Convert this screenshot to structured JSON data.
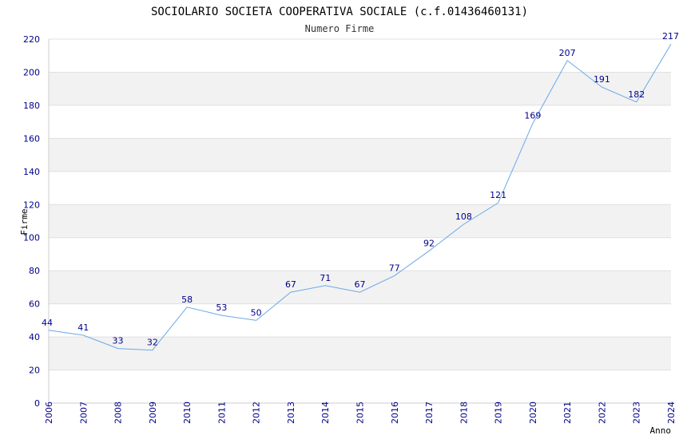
{
  "chart_data": {
    "type": "line",
    "title": "SOCIOLARIO SOCIETA COOPERATIVA SOCIALE (c.f.01436460131)",
    "subtitle": "Numero Firme",
    "xlabel": "Anno",
    "ylabel": "Firme",
    "ylim": [
      0,
      220
    ],
    "yticks": [
      0,
      20,
      40,
      60,
      80,
      100,
      120,
      140,
      160,
      180,
      200,
      220
    ],
    "grid": true,
    "x": [
      "2006",
      "2007",
      "2008",
      "2009",
      "2010",
      "2011",
      "2012",
      "2013",
      "2014",
      "2015",
      "2016",
      "2017",
      "2018",
      "2019",
      "2020",
      "2021",
      "2022",
      "2023",
      "2024"
    ],
    "series": [
      {
        "values": [
          44,
          41,
          33,
          32,
          58,
          53,
          50,
          67,
          71,
          67,
          77,
          92,
          108,
          121,
          169,
          207,
          191,
          182,
          217
        ]
      }
    ],
    "colors": {
      "line": "#6aa8e8",
      "band": "#f2f2f2",
      "tick_text": "#00008b",
      "axis": "#cccccc"
    }
  }
}
